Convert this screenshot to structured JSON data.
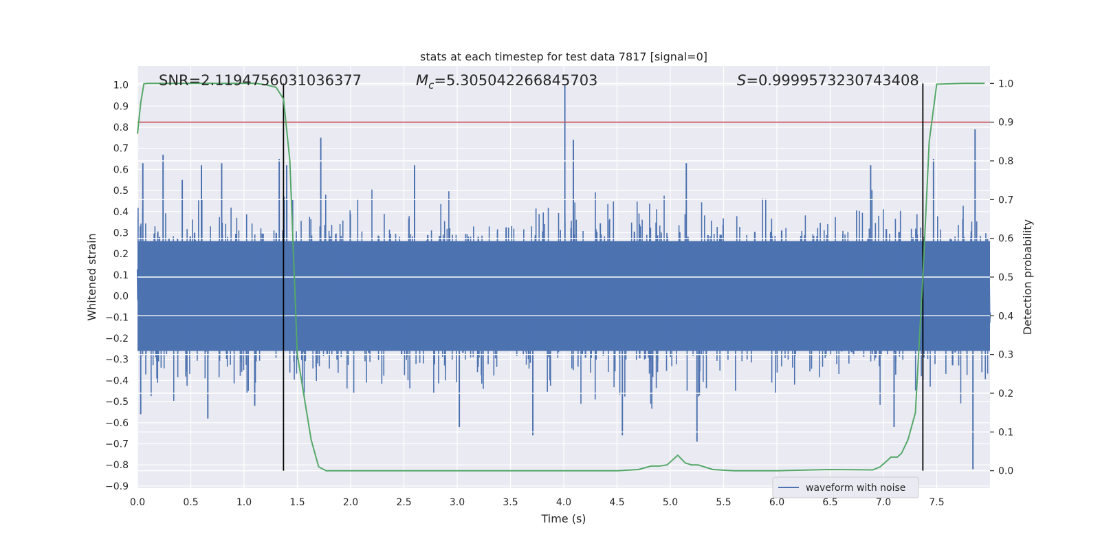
{
  "chart_data": {
    "type": "line",
    "title": "stats at each timestep for test data 7817 [signal=0]",
    "xlabel": "Time (s)",
    "ylabel": "Whitened strain",
    "ylabel_right": "Detection probability",
    "xlim": [
      0.0,
      8.0
    ],
    "ylim": [
      -0.91,
      1.09
    ],
    "ylim_right": [
      -0.045,
      1.045
    ],
    "x_ticks": [
      "0.0",
      "0.5",
      "1.0",
      "1.5",
      "2.0",
      "2.5",
      "3.0",
      "3.5",
      "4.0",
      "4.5",
      "5.0",
      "5.5",
      "6.0",
      "6.5",
      "7.0",
      "7.5"
    ],
    "y_ticks": [
      "1.0",
      "0.9",
      "0.8",
      "0.7",
      "0.6",
      "0.5",
      "0.4",
      "0.3",
      "0.2",
      "0.1",
      "0.0",
      "−0.1",
      "−0.2",
      "−0.3",
      "−0.4",
      "−0.5",
      "−0.6",
      "−0.7",
      "−0.8",
      "−0.9"
    ],
    "y_tick_values": [
      1.0,
      0.9,
      0.8,
      0.7,
      0.6,
      0.5,
      0.4,
      0.3,
      0.2,
      0.1,
      0.0,
      -0.1,
      -0.2,
      -0.3,
      -0.4,
      -0.5,
      -0.6,
      -0.7,
      -0.8,
      -0.9
    ],
    "y_right_ticks": [
      "1.0",
      "0.9",
      "0.8",
      "0.7",
      "0.6",
      "0.5",
      "0.4",
      "0.3",
      "0.2",
      "0.1",
      "0.0"
    ],
    "y_right_tick_values": [
      1.0,
      0.9,
      0.8,
      0.7,
      0.6,
      0.5,
      0.4,
      0.3,
      0.2,
      0.1,
      0.0
    ],
    "annotations": {
      "snr_label": "SNR=2.1194756031036377",
      "mc_symbol": "M",
      "mc_sub": "c",
      "mc_value": "=5.305042266845703",
      "s_symbol": "S",
      "s_value": "=0.9999573230743408"
    },
    "threshold": 0.9,
    "detection_window_start": 1.37,
    "detection_window_end": 7.37,
    "series": [
      {
        "name": "waveform with noise",
        "axis": "left",
        "color": "#4c72b0",
        "style": "dense noise centered at 0, typical amplitude ±0.35",
        "spikes": [
          {
            "x": 0.05,
            "y": 0.63
          },
          {
            "x": 0.24,
            "y": 0.67
          },
          {
            "x": 0.42,
            "y": 0.55
          },
          {
            "x": 0.6,
            "y": 0.62
          },
          {
            "x": 0.79,
            "y": 0.63
          },
          {
            "x": 1.33,
            "y": 0.65
          },
          {
            "x": 1.4,
            "y": 0.62
          },
          {
            "x": 1.72,
            "y": 0.75
          },
          {
            "x": 2.6,
            "y": 0.62
          },
          {
            "x": 4.01,
            "y": 1.0
          },
          {
            "x": 4.09,
            "y": 0.74
          },
          {
            "x": 5.15,
            "y": 0.63
          },
          {
            "x": 6.88,
            "y": 0.62
          },
          {
            "x": 7.47,
            "y": 0.65
          },
          {
            "x": 7.86,
            "y": 0.79
          },
          {
            "x": 0.03,
            "y": -0.56
          },
          {
            "x": 0.66,
            "y": -0.58
          },
          {
            "x": 1.1,
            "y": -0.52
          },
          {
            "x": 3.02,
            "y": -0.62
          },
          {
            "x": 3.71,
            "y": -0.66
          },
          {
            "x": 4.55,
            "y": -0.66
          },
          {
            "x": 5.25,
            "y": -0.69
          },
          {
            "x": 7.1,
            "y": -0.62
          },
          {
            "x": 7.84,
            "y": -0.82
          }
        ]
      },
      {
        "name": "detection probability",
        "axis": "right",
        "color": "#55a868",
        "x": [
          0.0,
          0.03,
          0.06,
          0.1,
          0.2,
          0.4,
          0.6,
          0.8,
          1.0,
          1.1,
          1.2,
          1.3,
          1.37,
          1.43,
          1.5,
          1.57,
          1.63,
          1.7,
          1.77,
          2.0,
          2.5,
          3.0,
          3.5,
          4.0,
          4.5,
          4.7,
          4.82,
          4.9,
          4.97,
          5.07,
          5.14,
          5.2,
          5.26,
          5.4,
          5.6,
          6.0,
          6.5,
          6.9,
          6.97,
          7.03,
          7.07,
          7.13,
          7.17,
          7.23,
          7.3,
          7.37,
          7.43,
          7.5,
          7.75,
          7.95
        ],
        "y": [
          0.87,
          0.95,
          0.999,
          1.0,
          1.0,
          1.0,
          1.0,
          1.0,
          1.0,
          1.0,
          0.997,
          0.99,
          0.96,
          0.8,
          0.3,
          0.18,
          0.08,
          0.01,
          0.0,
          0.0,
          0.0,
          0.0,
          0.0,
          0.0,
          0.0,
          0.003,
          0.012,
          0.012,
          0.015,
          0.04,
          0.02,
          0.015,
          0.015,
          0.003,
          0.0,
          0.0,
          0.003,
          0.002,
          0.01,
          0.025,
          0.035,
          0.035,
          0.045,
          0.08,
          0.15,
          0.5,
          0.85,
          0.998,
          1.0,
          1.0
        ]
      }
    ],
    "legend": {
      "entries": [
        "waveform with noise"
      ],
      "position": "lower-right"
    }
  }
}
